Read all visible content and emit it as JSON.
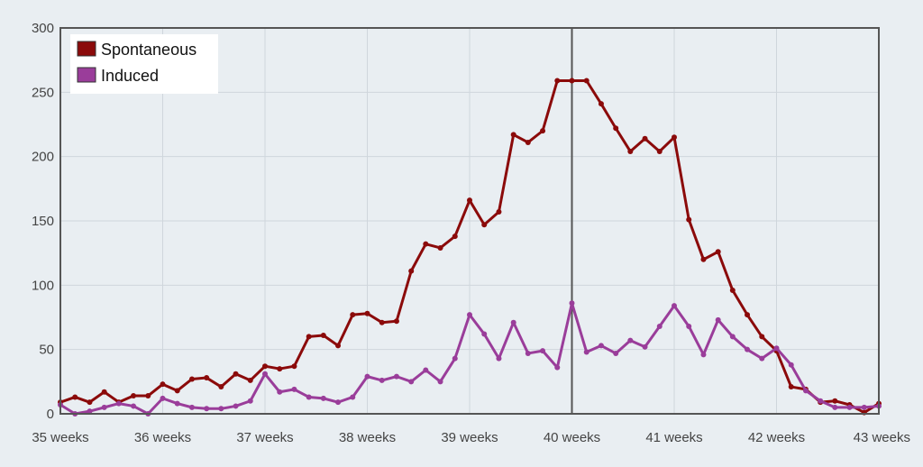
{
  "chart_data": {
    "type": "line",
    "title": "",
    "xlabel": "",
    "ylabel": "",
    "xlim": [
      35,
      43
    ],
    "ylim": [
      0,
      300
    ],
    "x_ticks": [
      35,
      36,
      37,
      38,
      39,
      40,
      41,
      42,
      43
    ],
    "x_tick_labels": [
      "35 weeks",
      "36 weeks",
      "37 weeks",
      "38 weeks",
      "39 weeks",
      "40 weeks",
      "41 weeks",
      "42 weeks",
      "43 weeks"
    ],
    "y_ticks": [
      0,
      50,
      100,
      150,
      200,
      250,
      300
    ],
    "y_tick_labels": [
      "0",
      "50",
      "100",
      "150",
      "200",
      "250",
      "300"
    ],
    "grid": true,
    "legend_position": "top-left",
    "reference_line_x": 40,
    "x": [
      35.0,
      35.143,
      35.286,
      35.429,
      35.571,
      35.714,
      35.857,
      36.0,
      36.143,
      36.286,
      36.429,
      36.571,
      36.714,
      36.857,
      37.0,
      37.143,
      37.286,
      37.429,
      37.571,
      37.714,
      37.857,
      38.0,
      38.143,
      38.286,
      38.429,
      38.571,
      38.714,
      38.857,
      39.0,
      39.143,
      39.286,
      39.429,
      39.571,
      39.714,
      39.857,
      40.0,
      40.143,
      40.286,
      40.429,
      40.571,
      40.714,
      40.857,
      41.0,
      41.143,
      41.286,
      41.429,
      41.571,
      41.714,
      41.857,
      42.0,
      42.143,
      42.286,
      42.429,
      42.571,
      42.714,
      42.857,
      43.0
    ],
    "series": [
      {
        "name": "Spontaneous",
        "color": "#8b0a0a",
        "values": [
          9,
          13,
          9,
          17,
          9,
          14,
          14,
          23,
          18,
          27,
          28,
          21,
          31,
          26,
          37,
          35,
          37,
          60,
          61,
          53,
          77,
          78,
          71,
          72,
          111,
          132,
          129,
          138,
          166,
          147,
          157,
          217,
          211,
          220,
          259,
          259,
          259,
          241,
          222,
          204,
          214,
          204,
          215,
          151,
          120,
          126,
          96,
          77,
          60,
          49,
          21,
          19,
          9,
          10,
          7,
          1,
          8
        ]
      },
      {
        "name": "Induced",
        "color": "#9a3d9a",
        "values": [
          7,
          0,
          2,
          5,
          8,
          6,
          0,
          12,
          8,
          5,
          4,
          4,
          6,
          10,
          31,
          17,
          19,
          13,
          12,
          9,
          13,
          29,
          26,
          29,
          25,
          34,
          25,
          43,
          77,
          62,
          43,
          71,
          47,
          49,
          36,
          86,
          48,
          53,
          47,
          57,
          52,
          68,
          84,
          68,
          46,
          73,
          60,
          50,
          43,
          51,
          38,
          18,
          10,
          5,
          5,
          5,
          6
        ]
      }
    ]
  }
}
